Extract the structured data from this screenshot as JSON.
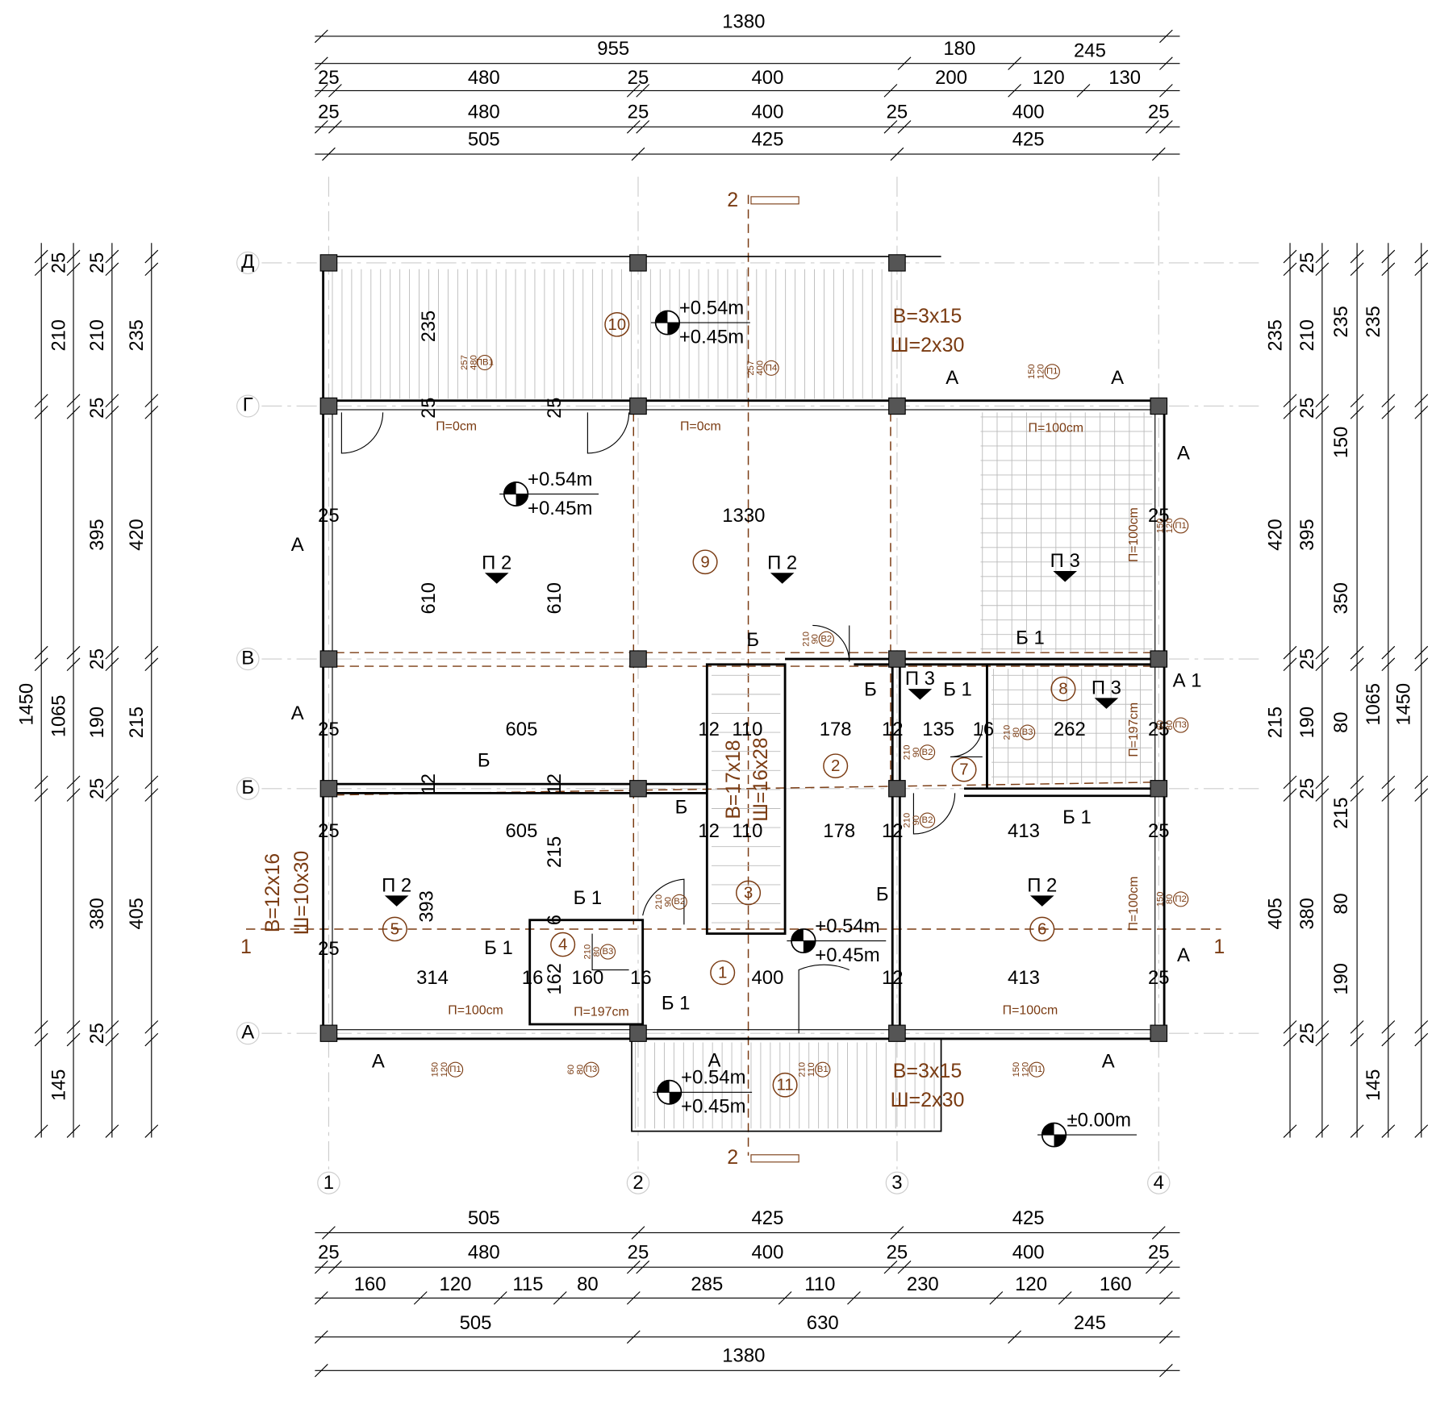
{
  "dimensions": {
    "top": [
      [
        1380
      ],
      [
        955,
        180,
        245
      ],
      [
        25,
        480,
        25,
        400,
        200,
        120,
        130
      ],
      [
        25,
        480,
        25,
        400,
        25,
        400,
        25
      ],
      [
        505,
        425,
        425
      ]
    ],
    "bottom": [
      [
        505,
        425,
        425
      ],
      [
        25,
        480,
        25,
        400,
        25,
        400,
        25
      ],
      [
        160,
        120,
        115,
        80,
        285,
        110,
        230,
        120,
        160
      ],
      [
        505,
        630,
        245
      ],
      [
        1380
      ]
    ],
    "left": [
      [
        1450
      ],
      [
        25,
        210,
        1065,
        145
      ],
      [
        25,
        210,
        25,
        395,
        25,
        190,
        25,
        380,
        25
      ],
      [
        235,
        420,
        215,
        405
      ]
    ],
    "right": [
      [
        235,
        420,
        215,
        405
      ],
      [
        25,
        210,
        25,
        395,
        25,
        190,
        25,
        380,
        25
      ],
      [
        235,
        150,
        350,
        80,
        215,
        80,
        190
      ],
      [
        235,
        1065,
        145
      ],
      [
        1450
      ]
    ],
    "interior": [
      235,
      25,
      25,
      1330,
      25,
      25,
      610,
      610,
      25,
      605,
      12,
      110,
      178,
      12,
      135,
      16,
      262,
      25,
      12,
      12,
      25,
      605,
      12,
      110,
      178,
      12,
      413,
      25,
      215,
      393,
      6,
      25,
      162,
      314,
      16,
      160,
      16,
      400,
      12,
      413,
      25
    ]
  },
  "rooms": [
    10,
    9,
    8,
    2,
    7,
    3,
    5,
    4,
    6,
    1,
    11
  ],
  "levels": [
    [
      "+0.54m",
      "+0.45m"
    ],
    [
      "+0.54m",
      "+0.45m"
    ],
    [
      "+0.54m",
      "+0.45m"
    ],
    [
      "+0.54m",
      "+0.45m"
    ]
  ],
  "ground_level": "±0.00m",
  "stair_notes": [
    [
      "В=3x15",
      "Ш=2x30"
    ],
    [
      "В=3x15",
      "Ш=2x30"
    ],
    [
      "В=17x18",
      "Ш=16x28"
    ],
    [
      "В=12x16",
      "Ш=10x30"
    ]
  ],
  "sill_heights": [
    "П=0cm",
    "П=0cm",
    "П=100cm",
    "П=100cm",
    "П=100cm",
    "П=100cm",
    "П=100cm",
    "П=197cm",
    "П=197cm"
  ],
  "windows": [
    {
      "code": "ПВ1",
      "height": 257,
      "width": 480
    },
    {
      "code": "П4",
      "height": 257,
      "width": 400
    },
    {
      "code": "П1",
      "height": 150,
      "width": 120
    },
    {
      "code": "П1",
      "height": 150,
      "width": 120
    },
    {
      "code": "П3",
      "height": 60,
      "width": 80
    },
    {
      "code": "П2",
      "height": 150,
      "width": 80
    },
    {
      "code": "П1",
      "height": 150,
      "width": 120
    },
    {
      "code": "П3",
      "height": 60,
      "width": 80
    },
    {
      "code": "П1",
      "height": 150,
      "width": 120
    }
  ],
  "doors": [
    {
      "code": "В2",
      "height": 210,
      "width": 90
    },
    {
      "code": "В3",
      "height": 210,
      "width": 80
    },
    {
      "code": "В2",
      "height": 210,
      "width": 90
    },
    {
      "code": "В2",
      "height": 210,
      "width": 90
    },
    {
      "code": "В2",
      "height": 210,
      "width": 90
    },
    {
      "code": "В3",
      "height": 210,
      "width": 80
    },
    {
      "code": "В1",
      "height": 210,
      "width": 110
    }
  ],
  "floor_types": [
    "П 2",
    "П 2",
    "П 2",
    "П 2",
    "П 3",
    "П 3",
    "П 3"
  ],
  "wall_types": [
    "А",
    "А",
    "А",
    "А",
    "А",
    "А",
    "А",
    "А",
    "А",
    "А 1",
    "Б",
    "Б",
    "Б",
    "Б",
    "Б",
    "Б 1",
    "Б 1",
    "Б 1",
    "Б 1",
    "Б 1",
    "Б 1"
  ],
  "sections": [
    "1",
    "1",
    "2",
    "2"
  ],
  "axes": {
    "letters": [
      "Д",
      "Г",
      "В",
      "Б",
      "А"
    ],
    "numbers": [
      1,
      2,
      3,
      4
    ]
  }
}
